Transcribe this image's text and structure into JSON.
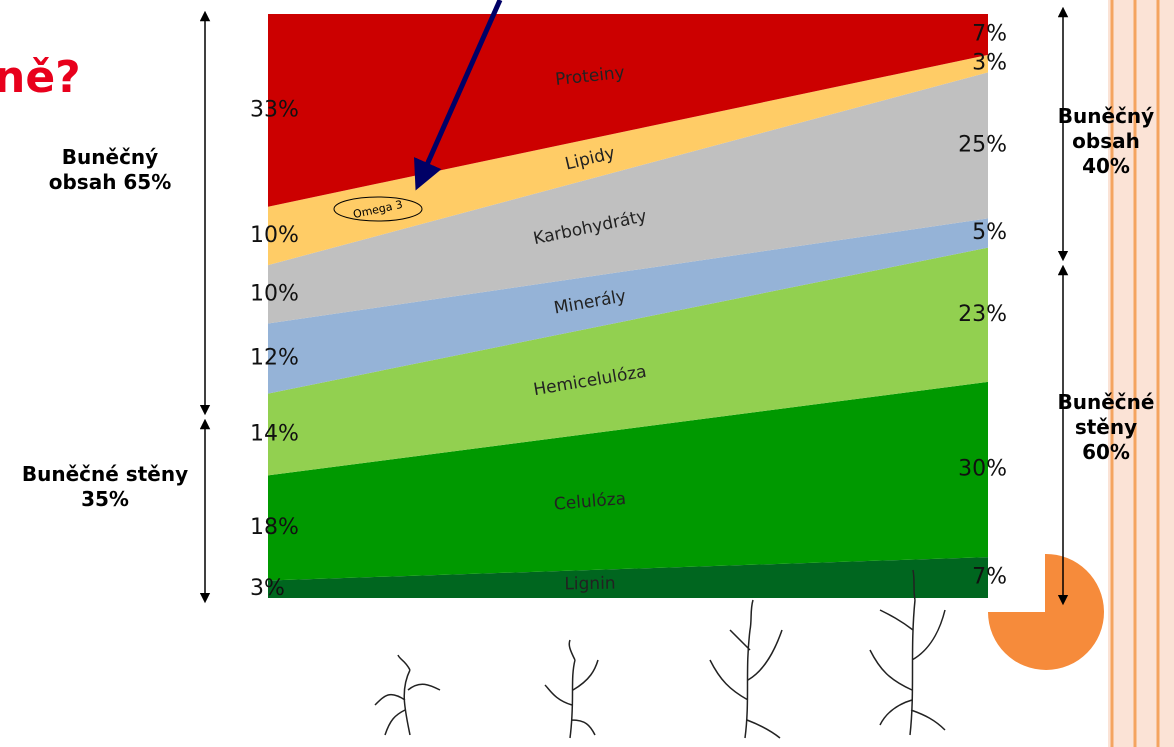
{
  "chart_data": {
    "type": "area",
    "stacked": true,
    "title": "ně?",
    "categories": [
      null,
      null
    ],
    "ylim": [
      0,
      100
    ],
    "series": [
      {
        "name": "Lignin",
        "color": "#00661f",
        "values": [
          3,
          7
        ],
        "value_labels": [
          "3%",
          "7%"
        ]
      },
      {
        "name": "Celulóza",
        "color": "#009900",
        "values": [
          18,
          30
        ],
        "value_labels": [
          "18%",
          "30%"
        ]
      },
      {
        "name": "Hemicelulóza",
        "color": "#92d050",
        "values": [
          14,
          23
        ],
        "value_labels": [
          "14%",
          "23%"
        ]
      },
      {
        "name": "Minerály",
        "color": "#95b3d7",
        "values": [
          12,
          5
        ],
        "value_labels": [
          "12%",
          "5%"
        ]
      },
      {
        "name": "Karbohydráty",
        "color": "#c0c0c0",
        "values": [
          10,
          25
        ],
        "value_labels": [
          "10%",
          "25%"
        ]
      },
      {
        "name": "Lipidy",
        "color": "#ffcc66",
        "values": [
          10,
          3
        ],
        "value_labels": [
          "10%",
          "3%"
        ]
      },
      {
        "name": "Proteiny",
        "color": "#cc0000",
        "values": [
          33,
          7
        ],
        "value_labels": [
          "33%",
          "7%"
        ]
      }
    ],
    "annotations": [
      "Buněčný obsah 65%",
      "Buněčné stěny 35%",
      "Buněčný obsah 40%",
      "Buněčné stěny 60%",
      "Omega 3"
    ]
  }
}
